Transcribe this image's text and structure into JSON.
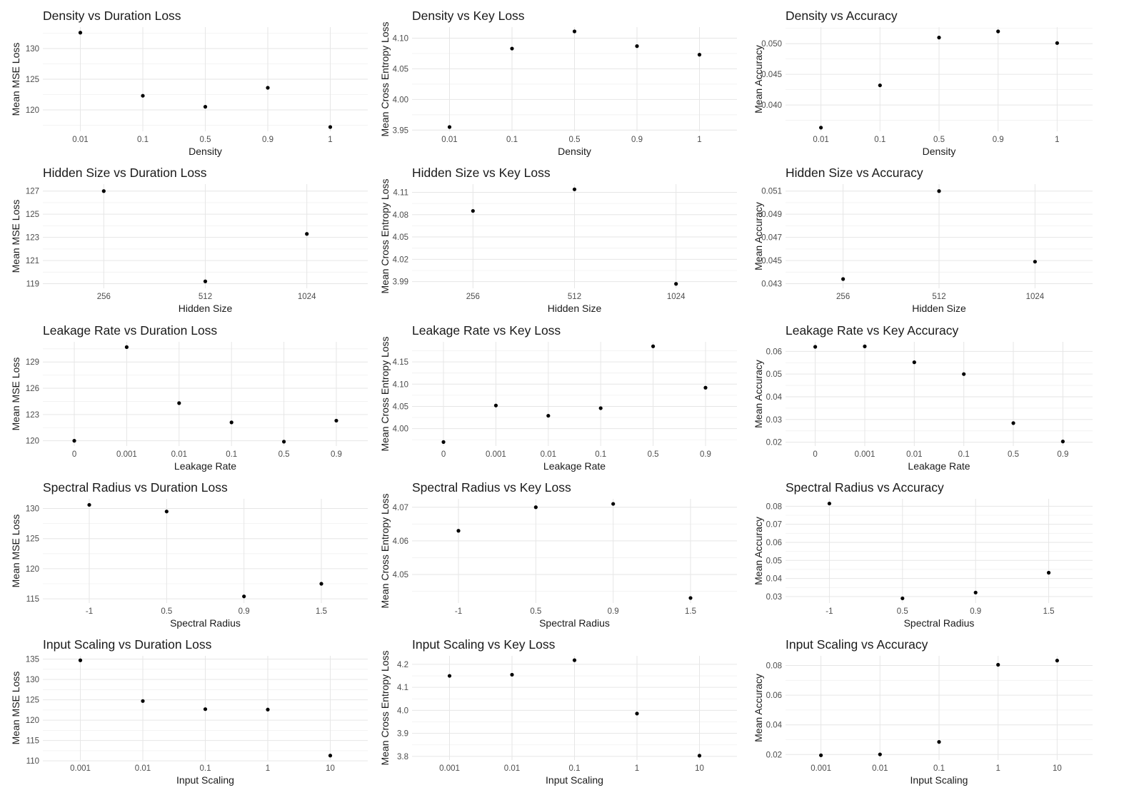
{
  "chart_data": [
    {
      "type": "scatter",
      "title": "Density vs Duration Loss",
      "xlabel": "Density",
      "ylabel": "Mean MSE Loss",
      "categories": [
        "0.01",
        "0.1",
        "0.5",
        "0.9",
        "1"
      ],
      "values": [
        132.6,
        122.3,
        120.5,
        123.6,
        117.2
      ],
      "yticks": [
        120,
        125,
        130
      ],
      "ylim": [
        116.5,
        133.5
      ],
      "grid": true
    },
    {
      "type": "scatter",
      "title": "Density vs Key Loss",
      "xlabel": "Density",
      "ylabel": "Mean Cross Entropy Loss",
      "categories": [
        "0.01",
        "0.1",
        "0.5",
        "0.9",
        "1"
      ],
      "values": [
        3.955,
        4.083,
        4.111,
        4.087,
        4.073
      ],
      "yticks": [
        3.95,
        4.0,
        4.05,
        4.1
      ],
      "ylim": [
        3.948,
        4.118
      ],
      "ytick_decimals": 2,
      "grid": true
    },
    {
      "type": "scatter",
      "title": "Density vs Accuracy",
      "xlabel": "Density",
      "ylabel": "Mean Accuracy",
      "categories": [
        "0.01",
        "0.1",
        "0.5",
        "0.9",
        "1"
      ],
      "values": [
        0.0363,
        0.0432,
        0.051,
        0.052,
        0.0501
      ],
      "yticks": [
        0.04,
        0.045,
        0.05
      ],
      "ylim": [
        0.0357,
        0.0527
      ],
      "ytick_decimals": 3,
      "grid": true
    },
    {
      "type": "scatter",
      "title": "Hidden Size vs Duration Loss",
      "xlabel": "Hidden Size",
      "ylabel": "Mean MSE Loss",
      "categories": [
        "256",
        "512",
        "1024"
      ],
      "values": [
        127.0,
        119.2,
        123.3
      ],
      "yticks": [
        119,
        121,
        123,
        125,
        127
      ],
      "ylim": [
        118.6,
        127.6
      ],
      "grid": true
    },
    {
      "type": "scatter",
      "title": "Hidden Size vs Key Loss",
      "xlabel": "Hidden Size",
      "ylabel": "Mean Cross Entropy Loss",
      "categories": [
        "256",
        "512",
        "1024"
      ],
      "values": [
        4.085,
        4.114,
        3.987
      ],
      "yticks": [
        3.99,
        4.02,
        4.05,
        4.08,
        4.11
      ],
      "ylim": [
        3.981,
        4.121
      ],
      "ytick_decimals": 2,
      "grid": true
    },
    {
      "type": "scatter",
      "title": "Hidden Size vs Accuracy",
      "xlabel": "Hidden Size",
      "ylabel": "Mean Accuracy",
      "categories": [
        "256",
        "512",
        "1024"
      ],
      "values": [
        0.0434,
        0.051,
        0.0449
      ],
      "yticks": [
        0.043,
        0.045,
        0.047,
        0.049,
        0.051
      ],
      "ylim": [
        0.0426,
        0.0516
      ],
      "ytick_decimals": 3,
      "grid": true
    },
    {
      "type": "scatter",
      "title": "Leakage Rate vs Duration Loss",
      "xlabel": "Leakage Rate",
      "ylabel": "Mean MSE Loss",
      "categories": [
        "0",
        "0.001",
        "0.01",
        "0.1",
        "0.5",
        "0.9"
      ],
      "values": [
        120.0,
        130.7,
        124.3,
        122.1,
        119.9,
        122.3
      ],
      "yticks": [
        120,
        123,
        126,
        129
      ],
      "ylim": [
        119.4,
        131.3
      ],
      "grid": true
    },
    {
      "type": "scatter",
      "title": "Leakage Rate vs Key Loss",
      "xlabel": "Leakage Rate",
      "ylabel": "Mean Cross Entropy Loss",
      "categories": [
        "0",
        "0.001",
        "0.01",
        "0.1",
        "0.5",
        "0.9"
      ],
      "values": [
        3.97,
        4.052,
        4.029,
        4.046,
        4.185,
        4.092
      ],
      "yticks": [
        4.0,
        4.05,
        4.1,
        4.15
      ],
      "ylim": [
        3.961,
        4.195
      ],
      "ytick_decimals": 2,
      "grid": true
    },
    {
      "type": "scatter",
      "title": "Leakage Rate vs Key Accuracy",
      "xlabel": "Leakage Rate",
      "ylabel": "Mean Accuracy",
      "categories": [
        "0",
        "0.001",
        "0.01",
        "0.1",
        "0.5",
        "0.9"
      ],
      "values": [
        0.062,
        0.0622,
        0.0552,
        0.05,
        0.0284,
        0.0203
      ],
      "yticks": [
        0.02,
        0.03,
        0.04,
        0.05,
        0.06
      ],
      "ylim": [
        0.0183,
        0.0642
      ],
      "ytick_decimals": 2,
      "grid": true
    },
    {
      "type": "scatter",
      "title": "Spectral Radius vs Duration Loss",
      "xlabel": "Spectral Radius",
      "ylabel": "Mean MSE Loss",
      "categories": [
        "-1",
        "0.5",
        "0.9",
        "1.5"
      ],
      "values": [
        130.6,
        129.5,
        115.4,
        117.5
      ],
      "yticks": [
        115,
        120,
        125,
        130
      ],
      "ylim": [
        114.3,
        131.6
      ],
      "grid": true
    },
    {
      "type": "scatter",
      "title": "Spectral Radius vs Key Loss",
      "xlabel": "Spectral Radius",
      "ylabel": "Mean Cross Entropy Loss",
      "categories": [
        "-1",
        "0.5",
        "0.9",
        "1.5"
      ],
      "values": [
        4.063,
        4.07,
        4.071,
        4.043
      ],
      "yticks": [
        4.05,
        4.06,
        4.07
      ],
      "ylim": [
        4.0415,
        4.0725
      ],
      "ytick_decimals": 2,
      "grid": true
    },
    {
      "type": "scatter",
      "title": "Spectral Radius vs Accuracy",
      "xlabel": "Spectral Radius",
      "ylabel": "Mean Accuracy",
      "categories": [
        "-1",
        "0.5",
        "0.9",
        "1.5"
      ],
      "values": [
        0.0815,
        0.029,
        0.0322,
        0.0432
      ],
      "yticks": [
        0.03,
        0.04,
        0.05,
        0.06,
        0.07,
        0.08
      ],
      "ylim": [
        0.0264,
        0.0841
      ],
      "ytick_decimals": 2,
      "grid": true
    },
    {
      "type": "scatter",
      "title": "Input Scaling vs Duration Loss",
      "xlabel": "Input Scaling",
      "ylabel": "Mean MSE Loss",
      "categories": [
        "0.001",
        "0.01",
        "0.1",
        "1",
        "10"
      ],
      "values": [
        134.7,
        124.7,
        122.7,
        122.6,
        111.3
      ],
      "yticks": [
        110,
        115,
        120,
        125,
        130,
        135
      ],
      "ylim": [
        110.2,
        135.8
      ],
      "grid": true
    },
    {
      "type": "scatter",
      "title": "Input Scaling vs Key Loss",
      "xlabel": "Input Scaling",
      "ylabel": "Mean Cross Entropy Loss",
      "categories": [
        "0.001",
        "0.01",
        "0.1",
        "1",
        "10"
      ],
      "values": [
        4.15,
        4.155,
        4.218,
        3.986,
        3.803
      ],
      "yticks": [
        3.8,
        3.9,
        4.0,
        4.1,
        4.2
      ],
      "ylim": [
        3.784,
        4.237
      ],
      "ytick_decimals": 1,
      "grid": true
    },
    {
      "type": "scatter",
      "title": "Input Scaling vs Accuracy",
      "xlabel": "Input Scaling",
      "ylabel": "Mean Accuracy",
      "categories": [
        "0.001",
        "0.01",
        "0.1",
        "1",
        "10"
      ],
      "values": [
        0.0195,
        0.0201,
        0.0285,
        0.0805,
        0.0833
      ],
      "yticks": [
        0.02,
        0.04,
        0.06,
        0.08
      ],
      "ylim": [
        0.0163,
        0.0865
      ],
      "ytick_decimals": 2,
      "grid": true
    }
  ]
}
